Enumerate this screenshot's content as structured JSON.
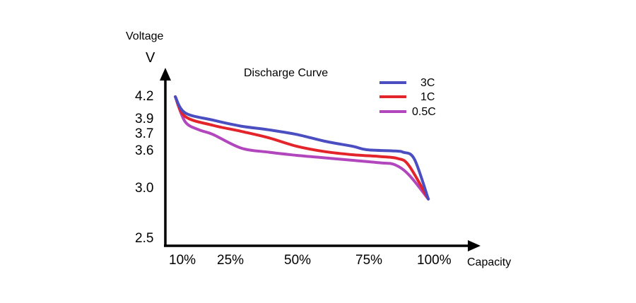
{
  "chart_data": {
    "type": "line",
    "title": "Discharge Curve",
    "ylabel": "Voltage",
    "yunit": "V",
    "xlabel": "Capacity",
    "xticks": [
      "10%",
      "25%",
      "50%",
      "75%",
      "100%"
    ],
    "yticks": [
      "4.2",
      "3.9",
      "3.7",
      "3.6",
      "3.0",
      "2.5"
    ],
    "legend_position": "top-right",
    "series": [
      {
        "name": "3C",
        "color": "#4a4ec0",
        "points": [
          [
            6.5,
            4.19
          ],
          [
            10,
            3.97
          ],
          [
            20,
            3.87
          ],
          [
            30,
            3.79
          ],
          [
            40,
            3.74
          ],
          [
            50,
            3.69
          ],
          [
            60,
            3.65
          ],
          [
            70,
            3.62
          ],
          [
            75,
            3.6
          ],
          [
            85,
            3.58
          ],
          [
            88,
            3.56
          ],
          [
            92,
            3.45
          ],
          [
            97,
            2.88
          ]
        ]
      },
      {
        "name": "1C",
        "color": "#e3242b",
        "points": [
          [
            6.5,
            4.19
          ],
          [
            10,
            3.92
          ],
          [
            20,
            3.8
          ],
          [
            30,
            3.72
          ],
          [
            40,
            3.67
          ],
          [
            50,
            3.62
          ],
          [
            60,
            3.57
          ],
          [
            70,
            3.52
          ],
          [
            80,
            3.49
          ],
          [
            86,
            3.46
          ],
          [
            90,
            3.35
          ],
          [
            97,
            2.88
          ]
        ]
      },
      {
        "name": "0.5C",
        "color": "#b247bd",
        "points": [
          [
            6.5,
            4.19
          ],
          [
            10,
            3.85
          ],
          [
            15,
            3.74
          ],
          [
            20,
            3.69
          ],
          [
            30,
            3.61
          ],
          [
            40,
            3.56
          ],
          [
            50,
            3.51
          ],
          [
            60,
            3.47
          ],
          [
            70,
            3.43
          ],
          [
            80,
            3.39
          ],
          [
            85,
            3.36
          ],
          [
            90,
            3.2
          ],
          [
            97,
            2.88
          ]
        ]
      }
    ]
  }
}
